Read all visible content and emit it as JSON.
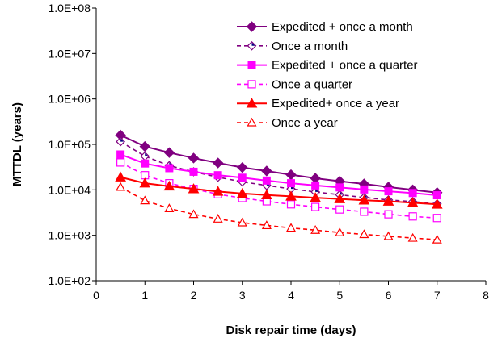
{
  "chart_data": {
    "type": "line",
    "title": "",
    "xlabel": "Disk repair time (days)",
    "ylabel": "MTTDL (years)",
    "xlim": [
      0,
      8
    ],
    "ylim": [
      100,
      100000000
    ],
    "yscale": "log",
    "grid": false,
    "legend_position": "top-right",
    "x_ticks": [
      0,
      1,
      2,
      3,
      4,
      5,
      6,
      7,
      8
    ],
    "x_tick_labels": [
      "0",
      "1",
      "2",
      "3",
      "4",
      "5",
      "6",
      "7",
      "8"
    ],
    "y_ticks": [
      100,
      1000,
      10000,
      100000,
      1000000,
      10000000,
      100000000
    ],
    "y_tick_labels": [
      "1.0E+02",
      "1.0E+03",
      "1.0E+04",
      "1.0E+05",
      "1.0E+06",
      "1.0E+07",
      "1.0E+08"
    ],
    "x": [
      0.5,
      1,
      1.5,
      2,
      2.5,
      3,
      3.5,
      4,
      4.5,
      5,
      5.5,
      6,
      6.5,
      7
    ],
    "series": [
      {
        "name": "Expedited + once a month",
        "color": "#800080",
        "line": "solid",
        "marker": "diamond-filled",
        "values": [
          160000,
          90000,
          66000,
          50000,
          39000,
          31000,
          26000,
          21500,
          18000,
          15500,
          13500,
          11500,
          10000,
          8700
        ]
      },
      {
        "name": "Once a month",
        "color": "#800080",
        "line": "dashed",
        "marker": "diamond-open",
        "values": [
          115000,
          55000,
          34000,
          25000,
          19000,
          15000,
          12500,
          10500,
          9000,
          7800,
          6800,
          6000,
          5500,
          4900
        ]
      },
      {
        "name": "Expedited + once a quarter",
        "color": "#ff00ff",
        "line": "solid",
        "marker": "square-filled",
        "values": [
          60000,
          38000,
          30000,
          25000,
          21000,
          18500,
          16000,
          14000,
          12500,
          11300,
          10200,
          9300,
          8500,
          7600
        ]
      },
      {
        "name": "Once a quarter",
        "color": "#ff00ff",
        "line": "dashed",
        "marker": "square-open",
        "values": [
          40000,
          21000,
          14000,
          10500,
          8000,
          6600,
          5600,
          4800,
          4200,
          3700,
          3300,
          2900,
          2600,
          2400
        ]
      },
      {
        "name": "Expedited+ once a year",
        "color": "#ff0000",
        "line": "solid",
        "marker": "triangle-filled",
        "values": [
          19000,
          14000,
          12000,
          10500,
          9200,
          8300,
          7700,
          7200,
          6700,
          6300,
          5900,
          5600,
          5200,
          4800
        ]
      },
      {
        "name": "Once a year",
        "color": "#ff0000",
        "line": "dashed",
        "marker": "triangle-open",
        "values": [
          11500,
          5800,
          3900,
          2900,
          2300,
          1900,
          1650,
          1450,
          1300,
          1150,
          1050,
          950,
          870,
          800
        ]
      }
    ]
  }
}
